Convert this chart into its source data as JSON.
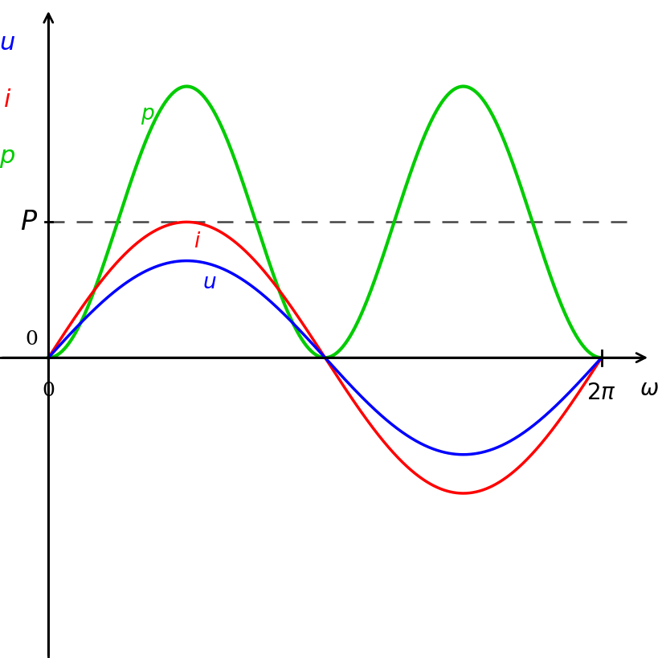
{
  "amp_u": 0.5,
  "amp_i": 0.7,
  "amp_p": 1.4,
  "P_level": 0.7,
  "legend_u_color": "#0000ff",
  "legend_i_color": "#ff0000",
  "legend_p_color": "#00cc00",
  "line_width": 2.5,
  "dashed_color": "#444444",
  "tick_fontsize": 18,
  "axis_label_fontsize": 20,
  "legend_fontsize": 22,
  "curve_label_fontsize": 19,
  "P_label_fontsize": 20
}
